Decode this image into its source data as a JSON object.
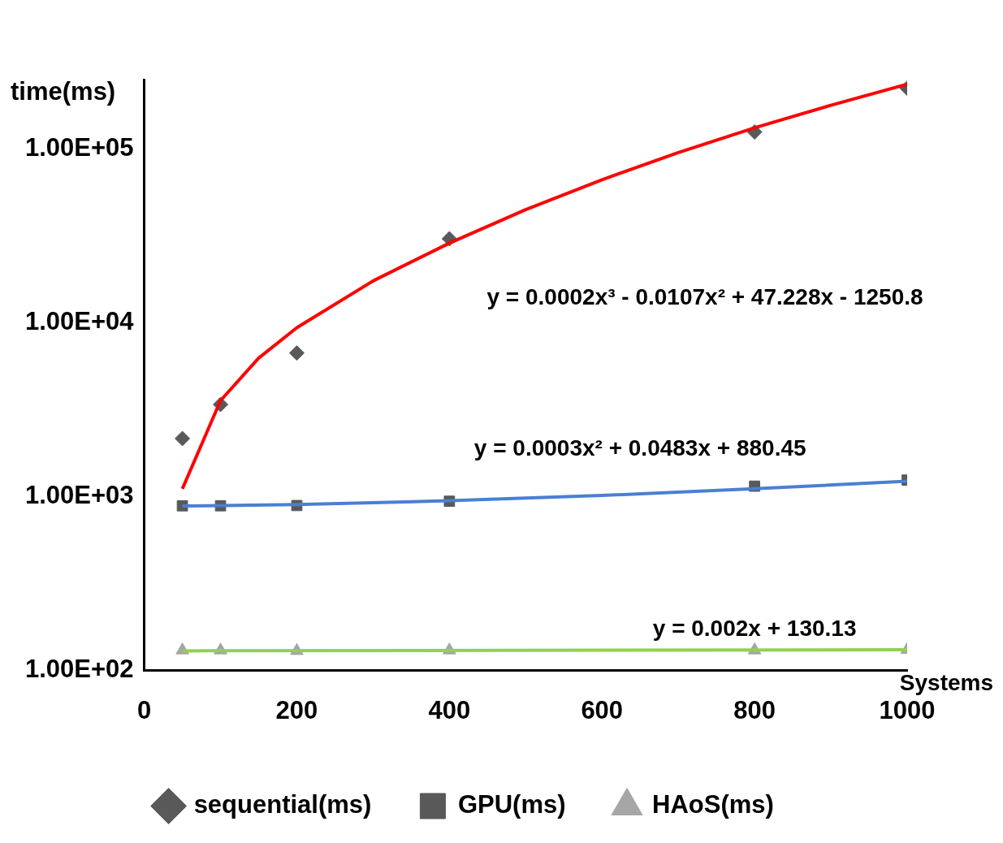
{
  "chart_data": {
    "type": "scatter",
    "xlabel": "Systems",
    "ylabel": "time(ms)",
    "log": "y",
    "xlim": [
      0,
      1000
    ],
    "xticks": [
      0,
      200,
      400,
      600,
      800,
      1000
    ],
    "ylim": [
      100,
      250000
    ],
    "yticks": [
      {
        "value": 100,
        "label": "1.00E+02"
      },
      {
        "value": 1000,
        "label": "1.00E+03"
      },
      {
        "value": 10000,
        "label": "1.00E+04"
      },
      {
        "value": 100000,
        "label": "1.00E+05"
      }
    ],
    "grid": false,
    "legend": "bottom",
    "series": [
      {
        "name": "sequential(ms)",
        "marker": "diamond",
        "color": "#595959",
        "x": [
          50,
          100,
          200,
          400,
          800,
          1000
        ],
        "values": [
          2160,
          3390,
          6700,
          30400,
          125000,
          223000
        ]
      },
      {
        "name": "GPU(ms)",
        "marker": "square",
        "color": "#595959",
        "x": [
          50,
          100,
          200,
          400,
          800,
          1000
        ],
        "values": [
          887,
          887,
          890,
          942,
          1150,
          1246
        ]
      },
      {
        "name": "HAoS(ms)",
        "marker": "triangle",
        "color": "#a6a6a6",
        "x": [
          50,
          100,
          200,
          400,
          800,
          1000
        ],
        "values": [
          131,
          131,
          130,
          131,
          131,
          132
        ]
      },
      {
        "type": "line",
        "marker": "none",
        "line_style": "solid",
        "color": "#ff0000",
        "x": [
          50,
          100,
          150,
          200,
          300,
          400,
          500,
          600,
          700,
          800,
          900,
          1000
        ],
        "values": [
          1110,
          3570,
          6270,
          9370,
          17400,
          28700,
          44700,
          66400,
          95200,
          132000,
          178000,
          235000
        ]
      },
      {
        "type": "line",
        "marker": "none",
        "line_style": "solid",
        "color": "#4a7fd4",
        "x": [
          50,
          200,
          400,
          600,
          800,
          1000
        ],
        "values": [
          884,
          902,
          948,
          1017,
          1111,
          1229
        ]
      },
      {
        "type": "line",
        "marker": "none",
        "line_style": "solid",
        "color": "#92d050",
        "x": [
          50,
          1000
        ],
        "values": [
          130,
          132
        ]
      }
    ],
    "annotations": [
      "y = 0.0002x³ - 0.0107x² + 47.228x - 1250.8",
      "y = 0.0003x² + 0.0483x + 880.45",
      "y = 0.002x + 130.13"
    ]
  }
}
